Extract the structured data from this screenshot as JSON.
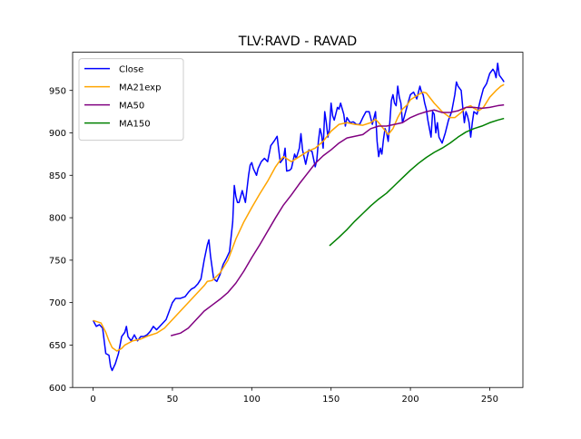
{
  "chart_data": {
    "type": "line",
    "title": "TLV:RAVD - RAVAD",
    "xlabel": "",
    "ylabel": "",
    "xlim": [
      -12.9,
      270.9
    ],
    "ylim": [
      600,
      995
    ],
    "x_ticks": [
      0,
      50,
      100,
      150,
      200,
      250
    ],
    "y_ticks": [
      600,
      650,
      700,
      750,
      800,
      850,
      900,
      950
    ],
    "grid": false,
    "legend_position": "upper left",
    "series": [
      {
        "name": "Close",
        "color": "#0000ff",
        "points": [
          [
            0,
            679
          ],
          [
            2,
            672
          ],
          [
            4,
            674
          ],
          [
            6,
            670
          ],
          [
            8,
            640
          ],
          [
            10,
            638
          ],
          [
            11,
            625
          ],
          [
            12,
            620
          ],
          [
            14,
            628
          ],
          [
            16,
            640
          ],
          [
            18,
            660
          ],
          [
            20,
            665
          ],
          [
            21,
            672
          ],
          [
            22,
            660
          ],
          [
            24,
            655
          ],
          [
            26,
            662
          ],
          [
            28,
            655
          ],
          [
            30,
            660
          ],
          [
            32,
            660
          ],
          [
            34,
            662
          ],
          [
            36,
            666
          ],
          [
            38,
            672
          ],
          [
            40,
            668
          ],
          [
            42,
            672
          ],
          [
            44,
            676
          ],
          [
            46,
            680
          ],
          [
            48,
            690
          ],
          [
            50,
            700
          ],
          [
            52,
            705
          ],
          [
            55,
            705
          ],
          [
            58,
            707
          ],
          [
            60,
            712
          ],
          [
            62,
            716
          ],
          [
            64,
            718
          ],
          [
            66,
            722
          ],
          [
            68,
            728
          ],
          [
            70,
            750
          ],
          [
            72,
            768
          ],
          [
            73,
            774
          ],
          [
            74,
            755
          ],
          [
            76,
            728
          ],
          [
            78,
            725
          ],
          [
            80,
            733
          ],
          [
            82,
            745
          ],
          [
            84,
            752
          ],
          [
            86,
            760
          ],
          [
            88,
            795
          ],
          [
            89,
            838
          ],
          [
            90,
            825
          ],
          [
            91,
            818
          ],
          [
            92,
            818
          ],
          [
            94,
            832
          ],
          [
            96,
            818
          ],
          [
            98,
            850
          ],
          [
            99,
            862
          ],
          [
            100,
            865
          ],
          [
            101,
            858
          ],
          [
            103,
            850
          ],
          [
            104,
            858
          ],
          [
            106,
            866
          ],
          [
            108,
            870
          ],
          [
            110,
            866
          ],
          [
            112,
            885
          ],
          [
            114,
            890
          ],
          [
            116,
            896
          ],
          [
            117,
            880
          ],
          [
            118,
            865
          ],
          [
            120,
            870
          ],
          [
            121,
            882
          ],
          [
            122,
            855
          ],
          [
            124,
            856
          ],
          [
            125,
            858
          ],
          [
            127,
            875
          ],
          [
            128,
            870
          ],
          [
            130,
            882
          ],
          [
            131,
            899
          ],
          [
            132,
            880
          ],
          [
            134,
            863
          ],
          [
            135,
            872
          ],
          [
            136,
            880
          ],
          [
            138,
            878
          ],
          [
            140,
            860
          ],
          [
            141,
            868
          ],
          [
            142,
            890
          ],
          [
            143,
            905
          ],
          [
            144,
            898
          ],
          [
            145,
            882
          ],
          [
            146,
            925
          ],
          [
            147,
            912
          ],
          [
            148,
            895
          ],
          [
            149,
            905
          ],
          [
            150,
            935
          ],
          [
            151,
            920
          ],
          [
            152,
            915
          ],
          [
            154,
            930
          ],
          [
            155,
            928
          ],
          [
            156,
            935
          ],
          [
            158,
            922
          ],
          [
            159,
            908
          ],
          [
            160,
            918
          ],
          [
            162,
            912
          ],
          [
            164,
            913
          ],
          [
            166,
            910
          ],
          [
            168,
            910
          ],
          [
            170,
            918
          ],
          [
            172,
            925
          ],
          [
            174,
            925
          ],
          [
            176,
            910
          ],
          [
            178,
            925
          ],
          [
            179,
            890
          ],
          [
            180,
            872
          ],
          [
            181,
            882
          ],
          [
            182,
            875
          ],
          [
            183,
            892
          ],
          [
            184,
            905
          ],
          [
            185,
            900
          ],
          [
            186,
            890
          ],
          [
            187,
            912
          ],
          [
            188,
            938
          ],
          [
            189,
            945
          ],
          [
            190,
            935
          ],
          [
            191,
            932
          ],
          [
            192,
            955
          ],
          [
            193,
            942
          ],
          [
            194,
            935
          ],
          [
            195,
            912
          ],
          [
            196,
            918
          ],
          [
            198,
            932
          ],
          [
            200,
            945
          ],
          [
            202,
            948
          ],
          [
            204,
            940
          ],
          [
            206,
            955
          ],
          [
            207,
            948
          ],
          [
            208,
            945
          ],
          [
            209,
            935
          ],
          [
            210,
            928
          ],
          [
            211,
            915
          ],
          [
            212,
            905
          ],
          [
            213,
            895
          ],
          [
            214,
            925
          ],
          [
            215,
            922
          ],
          [
            216,
            900
          ],
          [
            217,
            912
          ],
          [
            218,
            895
          ],
          [
            220,
            888
          ],
          [
            222,
            900
          ],
          [
            224,
            915
          ],
          [
            226,
            925
          ],
          [
            228,
            945
          ],
          [
            229,
            960
          ],
          [
            230,
            955
          ],
          [
            232,
            950
          ],
          [
            233,
            930
          ],
          [
            234,
            912
          ],
          [
            235,
            925
          ],
          [
            236,
            920
          ],
          [
            237,
            912
          ],
          [
            238,
            895
          ],
          [
            239,
            912
          ],
          [
            240,
            925
          ],
          [
            242,
            922
          ],
          [
            244,
            938
          ],
          [
            246,
            952
          ],
          [
            248,
            958
          ],
          [
            250,
            970
          ],
          [
            252,
            975
          ],
          [
            253,
            972
          ],
          [
            254,
            965
          ],
          [
            255,
            982
          ],
          [
            256,
            968
          ],
          [
            258,
            963
          ],
          [
            259,
            960
          ]
        ]
      },
      {
        "name": "MA21exp",
        "color": "#ffa500",
        "points": [
          [
            0,
            679
          ],
          [
            5,
            676
          ],
          [
            8,
            665
          ],
          [
            10,
            655
          ],
          [
            12,
            647
          ],
          [
            15,
            643
          ],
          [
            18,
            646
          ],
          [
            20,
            650
          ],
          [
            25,
            655
          ],
          [
            30,
            657
          ],
          [
            35,
            661
          ],
          [
            40,
            664
          ],
          [
            45,
            670
          ],
          [
            50,
            680
          ],
          [
            55,
            690
          ],
          [
            60,
            700
          ],
          [
            65,
            710
          ],
          [
            70,
            720
          ],
          [
            72,
            725
          ],
          [
            75,
            726
          ],
          [
            80,
            735
          ],
          [
            85,
            750
          ],
          [
            90,
            775
          ],
          [
            95,
            795
          ],
          [
            100,
            812
          ],
          [
            105,
            828
          ],
          [
            110,
            843
          ],
          [
            115,
            860
          ],
          [
            118,
            868
          ],
          [
            120,
            872
          ],
          [
            125,
            866
          ],
          [
            130,
            872
          ],
          [
            135,
            878
          ],
          [
            140,
            882
          ],
          [
            145,
            890
          ],
          [
            150,
            902
          ],
          [
            155,
            910
          ],
          [
            160,
            912
          ],
          [
            165,
            910
          ],
          [
            170,
            909
          ],
          [
            175,
            912
          ],
          [
            178,
            916
          ],
          [
            180,
            912
          ],
          [
            183,
            905
          ],
          [
            186,
            898
          ],
          [
            189,
            905
          ],
          [
            192,
            918
          ],
          [
            195,
            928
          ],
          [
            198,
            933
          ],
          [
            200,
            939
          ],
          [
            205,
            945
          ],
          [
            208,
            948
          ],
          [
            210,
            947
          ],
          [
            215,
            935
          ],
          [
            220,
            925
          ],
          [
            225,
            918
          ],
          [
            228,
            918
          ],
          [
            232,
            924
          ],
          [
            235,
            930
          ],
          [
            238,
            932
          ],
          [
            240,
            929
          ],
          [
            243,
            926
          ],
          [
            246,
            930
          ],
          [
            250,
            942
          ],
          [
            254,
            950
          ],
          [
            257,
            955
          ],
          [
            259,
            957
          ]
        ]
      },
      {
        "name": "MA50",
        "color": "#800080",
        "points": [
          [
            49,
            661
          ],
          [
            55,
            664
          ],
          [
            60,
            670
          ],
          [
            65,
            680
          ],
          [
            70,
            690
          ],
          [
            75,
            697
          ],
          [
            80,
            704
          ],
          [
            85,
            712
          ],
          [
            90,
            723
          ],
          [
            95,
            737
          ],
          [
            100,
            753
          ],
          [
            105,
            768
          ],
          [
            110,
            784
          ],
          [
            115,
            800
          ],
          [
            120,
            815
          ],
          [
            125,
            827
          ],
          [
            130,
            840
          ],
          [
            135,
            852
          ],
          [
            140,
            864
          ],
          [
            145,
            873
          ],
          [
            150,
            880
          ],
          [
            155,
            888
          ],
          [
            160,
            894
          ],
          [
            165,
            896
          ],
          [
            170,
            898
          ],
          [
            175,
            905
          ],
          [
            180,
            908
          ],
          [
            185,
            908
          ],
          [
            190,
            910
          ],
          [
            195,
            912
          ],
          [
            200,
            918
          ],
          [
            205,
            922
          ],
          [
            210,
            925
          ],
          [
            215,
            927
          ],
          [
            220,
            924
          ],
          [
            225,
            924
          ],
          [
            230,
            926
          ],
          [
            235,
            930
          ],
          [
            240,
            930
          ],
          [
            245,
            929
          ],
          [
            250,
            930
          ],
          [
            255,
            932
          ],
          [
            259,
            933
          ]
        ]
      },
      {
        "name": "MA150",
        "color": "#008000",
        "points": [
          [
            149,
            767
          ],
          [
            155,
            777
          ],
          [
            160,
            786
          ],
          [
            165,
            796
          ],
          [
            170,
            805
          ],
          [
            175,
            814
          ],
          [
            180,
            822
          ],
          [
            185,
            829
          ],
          [
            190,
            838
          ],
          [
            195,
            847
          ],
          [
            200,
            856
          ],
          [
            205,
            864
          ],
          [
            210,
            871
          ],
          [
            215,
            877
          ],
          [
            220,
            882
          ],
          [
            225,
            888
          ],
          [
            230,
            895
          ],
          [
            235,
            901
          ],
          [
            240,
            905
          ],
          [
            245,
            908
          ],
          [
            250,
            912
          ],
          [
            255,
            915
          ],
          [
            259,
            917
          ]
        ]
      }
    ]
  }
}
